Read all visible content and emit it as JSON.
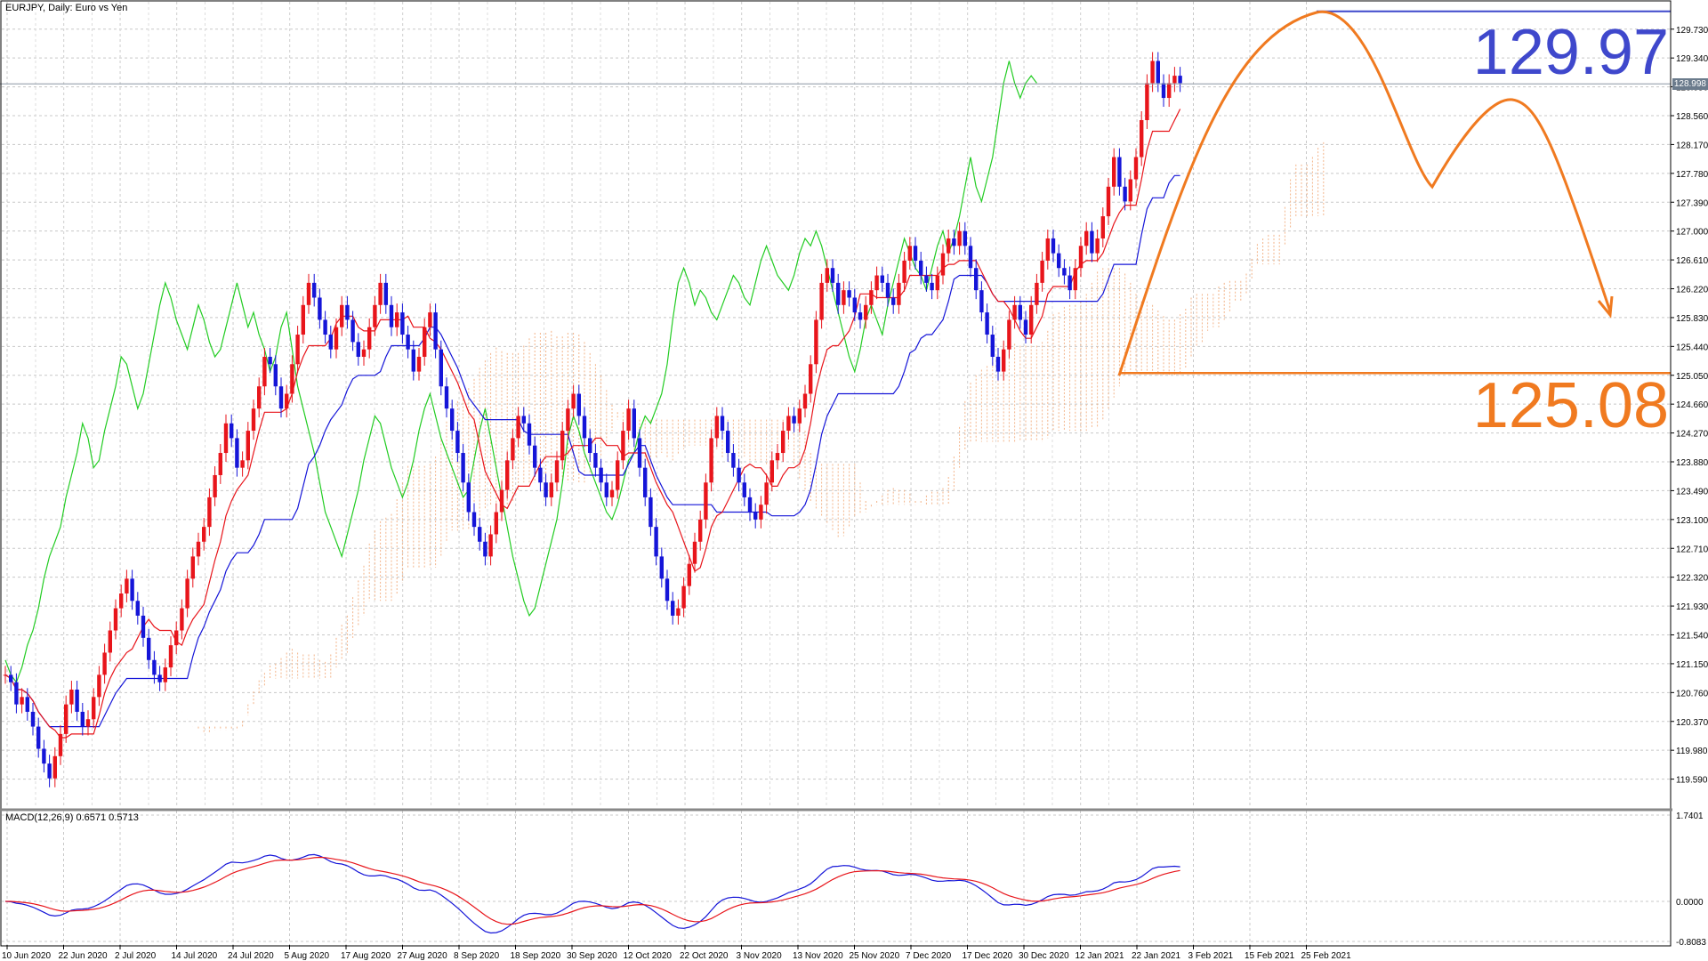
{
  "header": {
    "symbol_label": "EURJPY, Daily:  Euro vs Yen"
  },
  "macd": {
    "label": "MACD(12,26,9) 0.6571 0.5713"
  },
  "annotations": {
    "high_label": "129.97",
    "low_label": "125.08",
    "current_price_tag": "128.998"
  },
  "colors": {
    "bull": "#e8151b",
    "bear": "#1515d8",
    "tenkan": "#e8151b",
    "kijun": "#1515d8",
    "chikou": "#22cc22",
    "cloud": "#f3b58a",
    "orange": "#f07a20",
    "blue_line": "#3f48cc"
  },
  "chart_data": [
    {
      "type": "candlestick",
      "title": "EURJPY, Daily:  Euro vs Yen",
      "ylim": [
        119.2,
        130.1
      ],
      "y_ticks": [
        "129.730",
        "129.340",
        "128.950",
        "128.560",
        "128.170",
        "127.780",
        "127.390",
        "127.000",
        "126.610",
        "126.220",
        "125.830",
        "125.440",
        "125.050",
        "124.660",
        "124.270",
        "123.880",
        "123.490",
        "123.100",
        "122.710",
        "122.320",
        "121.930",
        "121.540",
        "121.150",
        "120.760",
        "120.370",
        "119.980",
        "119.590"
      ],
      "x_ticks": [
        "10 Jun 2020",
        "22 Jun 2020",
        "2 Jul 2020",
        "14 Jul 2020",
        "24 Jul 2020",
        "5 Aug 2020",
        "17 Aug 2020",
        "27 Aug 2020",
        "8 Sep 2020",
        "18 Sep 2020",
        "30 Sep 2020",
        "12 Oct 2020",
        "22 Oct 2020",
        "3 Nov 2020",
        "13 Nov 2020",
        "25 Nov 2020",
        "7 Dec 2020",
        "17 Dec 2020",
        "30 Dec 2020",
        "12 Jan 2021",
        "22 Jan 2021",
        "3 Feb 2021",
        "15 Feb 2021",
        "25 Feb 2021"
      ],
      "close_series": [
        121.0,
        120.9,
        120.6,
        120.7,
        120.5,
        120.3,
        120.0,
        119.8,
        119.6,
        119.9,
        120.2,
        120.6,
        120.8,
        120.5,
        120.3,
        120.4,
        120.7,
        121.0,
        121.3,
        121.6,
        121.9,
        122.1,
        122.3,
        122.0,
        121.8,
        121.5,
        121.2,
        121.0,
        120.9,
        121.1,
        121.4,
        121.6,
        121.9,
        122.3,
        122.6,
        122.8,
        123.0,
        123.4,
        123.7,
        124.0,
        124.4,
        124.2,
        123.8,
        123.9,
        124.3,
        124.6,
        124.9,
        125.3,
        125.2,
        124.9,
        124.6,
        124.8,
        125.2,
        125.6,
        126.0,
        126.3,
        126.1,
        125.8,
        125.6,
        125.4,
        125.7,
        126.0,
        125.8,
        125.5,
        125.3,
        125.4,
        125.7,
        126.0,
        126.3,
        126.0,
        125.7,
        125.9,
        125.6,
        125.4,
        125.1,
        125.3,
        125.7,
        125.9,
        125.4,
        124.9,
        124.6,
        124.3,
        124.0,
        123.6,
        123.2,
        123.0,
        122.8,
        122.6,
        122.9,
        123.2,
        123.5,
        123.9,
        124.2,
        124.5,
        124.4,
        124.1,
        123.8,
        123.6,
        123.4,
        123.6,
        123.9,
        124.3,
        124.6,
        124.8,
        124.5,
        124.2,
        124.0,
        123.8,
        123.6,
        123.4,
        123.5,
        123.9,
        124.3,
        124.6,
        124.2,
        123.8,
        123.4,
        123.0,
        122.6,
        122.3,
        122.0,
        121.8,
        121.9,
        122.2,
        122.5,
        122.8,
        123.1,
        123.6,
        124.2,
        124.5,
        124.3,
        124.0,
        123.8,
        123.6,
        123.4,
        123.2,
        123.1,
        123.3,
        123.6,
        123.9,
        124.0,
        124.3,
        124.5,
        124.4,
        124.6,
        124.8,
        125.2,
        125.8,
        126.3,
        126.5,
        126.3,
        126.0,
        126.2,
        126.1,
        125.9,
        125.8,
        126.0,
        126.2,
        126.4,
        126.3,
        126.1,
        126.0,
        126.3,
        126.6,
        126.8,
        126.6,
        126.4,
        126.3,
        126.2,
        126.4,
        126.7,
        126.9,
        126.8,
        127.0,
        126.8,
        126.5,
        126.2,
        125.9,
        125.6,
        125.3,
        125.1,
        125.4,
        125.8,
        126.0,
        125.8,
        125.6,
        126.0,
        126.3,
        126.6,
        126.9,
        126.7,
        126.5,
        126.4,
        126.2,
        126.5,
        126.8,
        127.0,
        126.7,
        126.9,
        127.2,
        127.6,
        128.0,
        127.6,
        127.4,
        127.7,
        128.0,
        128.5,
        129.0,
        129.3,
        129.0,
        128.8,
        129.0,
        129.1,
        129.0
      ]
    },
    {
      "type": "line",
      "title": "MACD(12,26,9) 0.6571 0.5713",
      "ylim": [
        -0.8083,
        1.7401
      ],
      "y_ticks": [
        "1.7401",
        "0.0000",
        "-0.8083"
      ]
    }
  ]
}
